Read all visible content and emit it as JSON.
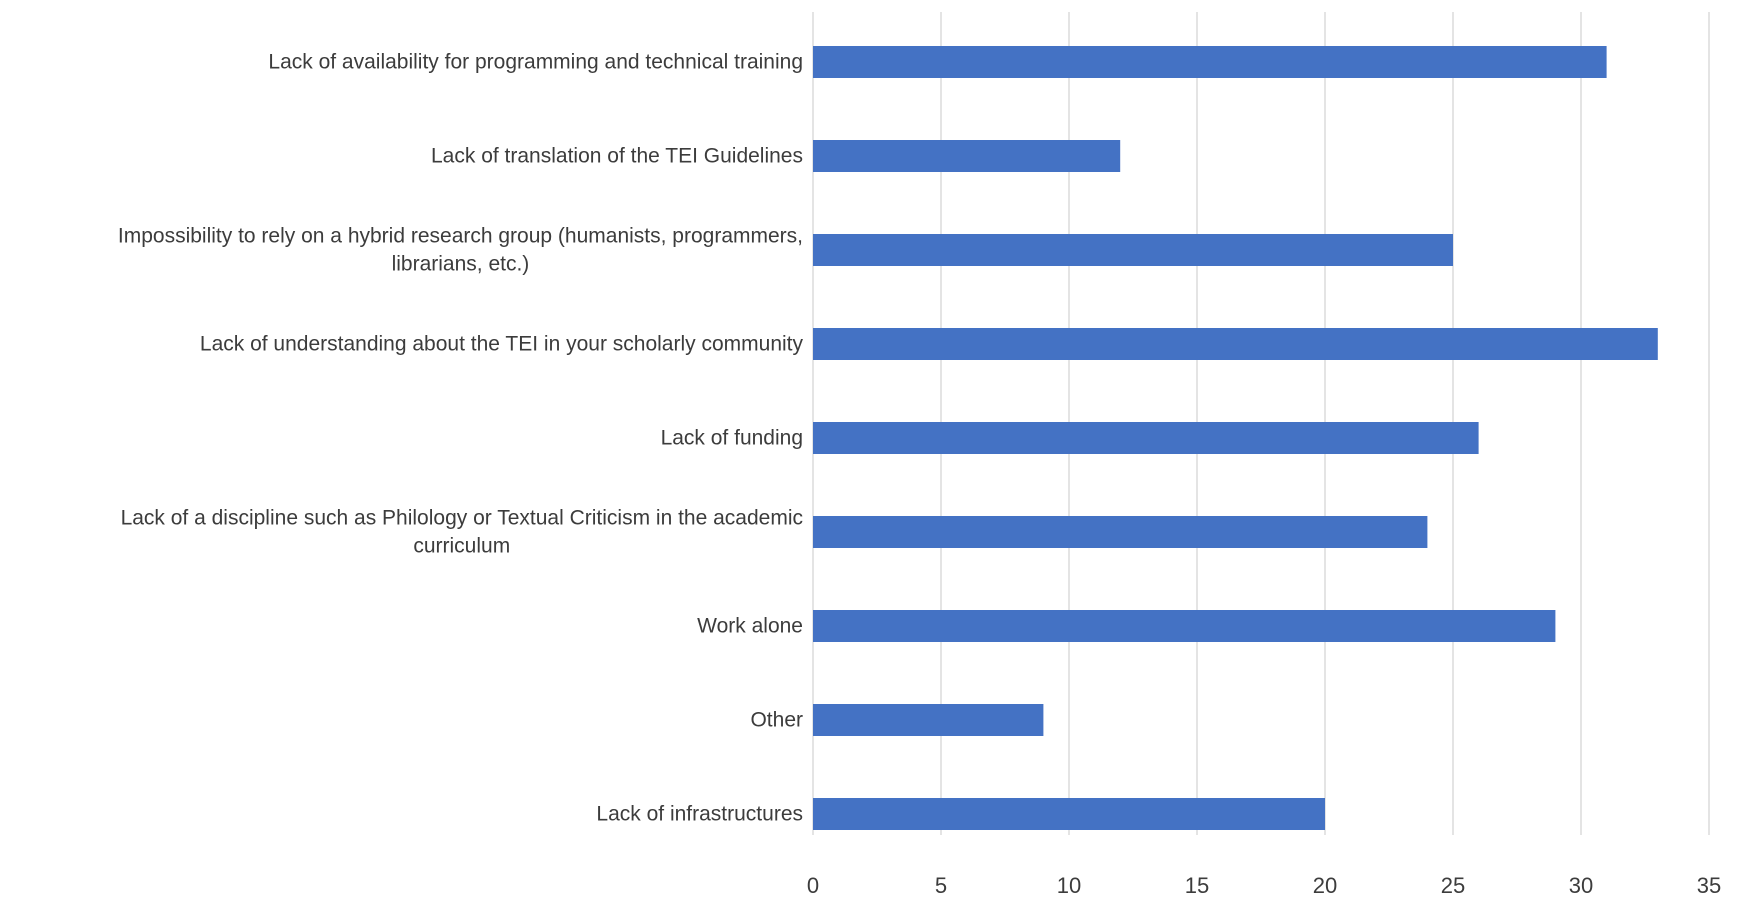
{
  "chart_data": {
    "type": "bar",
    "orientation": "horizontal",
    "title": "",
    "xlabel": "",
    "ylabel": "",
    "categories": [
      [
        "Lack of availability for programming and technical training"
      ],
      [
        "Lack of translation of the TEI Guidelines"
      ],
      [
        "Impossibility to rely on a hybrid research group (humanists, programmers,",
        "librarians, etc.)"
      ],
      [
        "Lack of understanding about the TEI in your scholarly community"
      ],
      [
        "Lack of funding"
      ],
      [
        "Lack of a discipline such as Philology or Textual Criticism in the academic",
        "curriculum"
      ],
      [
        "Work alone"
      ],
      [
        "Other"
      ],
      [
        "Lack of infrastructures"
      ]
    ],
    "values": [
      31,
      12,
      25,
      33,
      26,
      24,
      29,
      9,
      20
    ],
    "xlim": [
      0,
      35
    ],
    "xticks": [
      "0",
      "5",
      "10",
      "15",
      "20",
      "25",
      "30",
      "35"
    ],
    "grid": true,
    "legend": "none",
    "bar_color": "#4472c4",
    "grid_color": "#d9d9d9"
  }
}
